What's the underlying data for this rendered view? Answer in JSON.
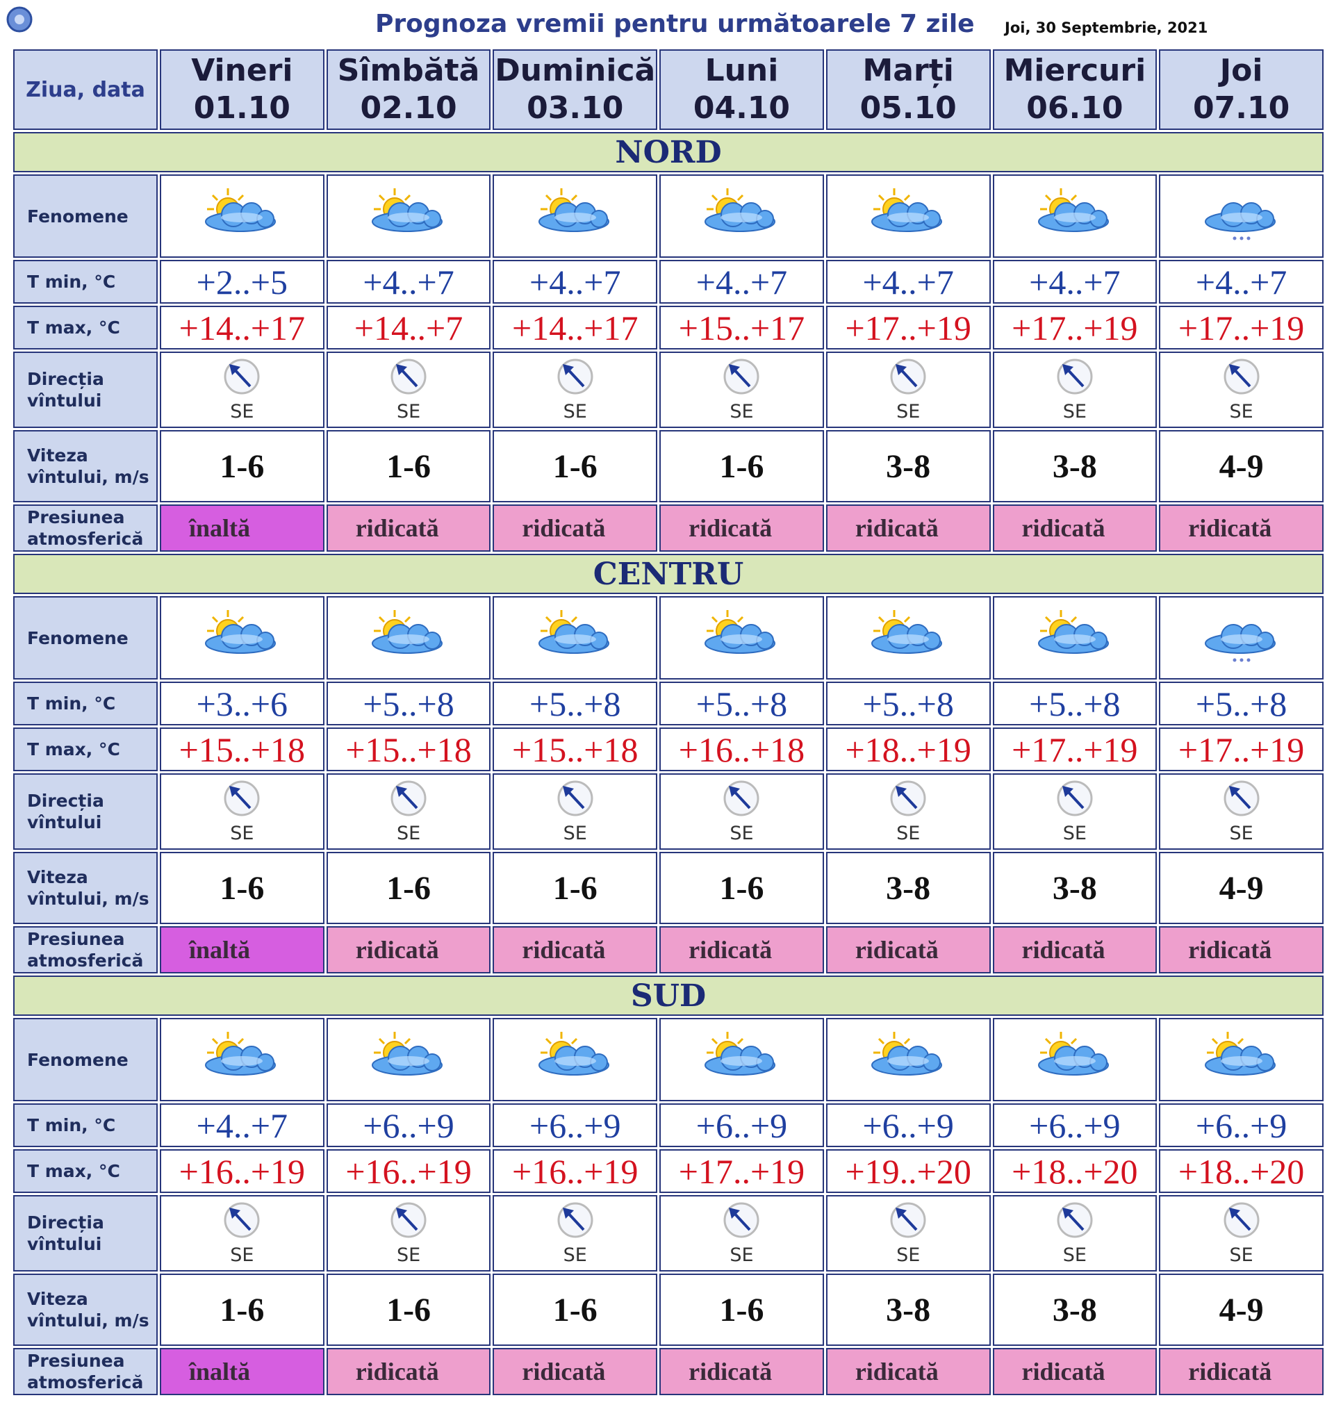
{
  "header": {
    "title": "Prognoza vremii pentru următoarele 7 zile",
    "date": "Joi, 30 Septembrie, 2021"
  },
  "labels": {
    "day": "Ziua, data",
    "phenomena": "Fenomene",
    "tmin": "T min, °C",
    "tmax": "T max, °C",
    "wind_dir": "Direcția vîntului",
    "wind_speed": "Viteza vîntului, m/s",
    "pressure": "Presiunea atmosferică"
  },
  "days": [
    {
      "name": "Vineri",
      "date": "01.10"
    },
    {
      "name": "Sîmbătă",
      "date": "02.10"
    },
    {
      "name": "Duminică",
      "date": "03.10"
    },
    {
      "name": "Luni",
      "date": "04.10"
    },
    {
      "name": "Marți",
      "date": "05.10"
    },
    {
      "name": "Miercuri",
      "date": "06.10"
    },
    {
      "name": "Joi",
      "date": "07.10"
    }
  ],
  "regions": [
    {
      "name": "NORD",
      "tmin": [
        "+2..+5",
        "+4..+7",
        "+4..+7",
        "+4..+7",
        "+4..+7",
        "+4..+7",
        "+4..+7"
      ],
      "tmax": [
        "+14..+17",
        "+14..+7",
        "+14..+17",
        "+15..+17",
        "+17..+19",
        "+17..+19",
        "+17..+19"
      ],
      "wind_dir": [
        "SE",
        "SE",
        "SE",
        "SE",
        "SE",
        "SE",
        "SE"
      ],
      "wind_speed": [
        "1-6",
        "1-6",
        "1-6",
        "1-6",
        "3-8",
        "3-8",
        "4-9"
      ],
      "pressure": [
        "înaltă",
        "ridicată",
        "ridicată",
        "ridicată",
        "ridicată",
        "ridicată",
        "ridicată"
      ],
      "pressure_colors": [
        "#d65ee0",
        "#ee9fcd",
        "#ee9fcd",
        "#ee9fcd",
        "#ee9fcd",
        "#ee9fcd",
        "#ee9fcd"
      ]
    },
    {
      "name": "CENTRU",
      "tmin": [
        "+3..+6",
        "+5..+8",
        "+5..+8",
        "+5..+8",
        "+5..+8",
        "+5..+8",
        "+5..+8"
      ],
      "tmax": [
        "+15..+18",
        "+15..+18",
        "+15..+18",
        "+16..+18",
        "+18..+19",
        "+17..+19",
        "+17..+19"
      ],
      "wind_dir": [
        "SE",
        "SE",
        "SE",
        "SE",
        "SE",
        "SE",
        "SE"
      ],
      "wind_speed": [
        "1-6",
        "1-6",
        "1-6",
        "1-6",
        "3-8",
        "3-8",
        "4-9"
      ],
      "pressure": [
        "înaltă",
        "ridicată",
        "ridicată",
        "ridicată",
        "ridicată",
        "ridicată",
        "ridicată"
      ],
      "pressure_colors": [
        "#d65ee0",
        "#ee9fcd",
        "#ee9fcd",
        "#ee9fcd",
        "#ee9fcd",
        "#ee9fcd",
        "#ee9fcd"
      ]
    },
    {
      "name": "SUD",
      "tmin": [
        "+4..+7",
        "+6..+9",
        "+6..+9",
        "+6..+9",
        "+6..+9",
        "+6..+9",
        "+6..+9"
      ],
      "tmax": [
        "+16..+19",
        "+16..+19",
        "+16..+19",
        "+17..+19",
        "+19..+20",
        "+18..+20",
        "+18..+20"
      ],
      "wind_dir": [
        "SE",
        "SE",
        "SE",
        "SE",
        "SE",
        "SE",
        "SE"
      ],
      "wind_speed": [
        "1-6",
        "1-6",
        "1-6",
        "1-6",
        "3-8",
        "3-8",
        "4-9"
      ],
      "pressure": [
        "înaltă",
        "ridicată",
        "ridicată",
        "ridicată",
        "ridicată",
        "ridicată",
        "ridicată"
      ],
      "pressure_colors": [
        "#d65ee0",
        "#ee9fcd",
        "#ee9fcd",
        "#ee9fcd",
        "#ee9fcd",
        "#ee9fcd",
        "#ee9fcd"
      ]
    }
  ]
}
